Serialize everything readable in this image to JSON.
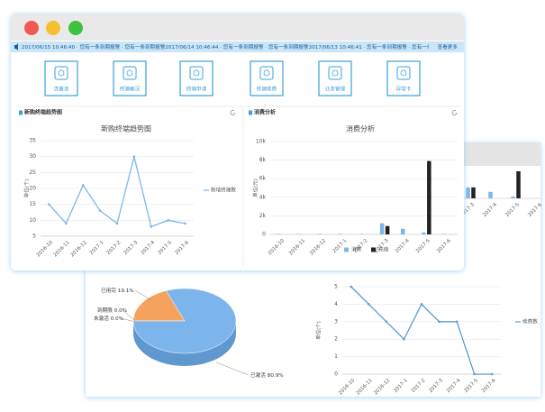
{
  "ticker": {
    "text": "2017/06/15 10:46:40 · 您有一条到期报警 · 您有一条到期报警2017/06/14 10:46:44 · 您有一条到期报警 · 您有一条到期报警2017/06/13 10:46:41 · 您有一条到期报警 · 您有一条",
    "more": "查看更多"
  },
  "shortcuts": [
    "流量池",
    "终端概况",
    "终端申请",
    "终端续费",
    "业务管理",
    "异常卡"
  ],
  "chart_data": [
    {
      "type": "line",
      "panel_title": "新购终端趋势图",
      "title": "新购终端趋势图",
      "y_label": "单位(个)",
      "categories": [
        "2016-10",
        "2016-11",
        "2016-12",
        "2017-1",
        "2017-2",
        "2017-3",
        "2017-4",
        "2017-5",
        "2017-6"
      ],
      "series": [
        {
          "name": "新增终端数",
          "color": "#7cb5ec",
          "values": [
            15,
            9,
            21,
            13,
            9,
            30,
            8,
            10,
            9
          ]
        }
      ],
      "ylim": [
        5,
        35
      ],
      "yticks": [
        5,
        10,
        15,
        20,
        25,
        30,
        35
      ],
      "grid": true
    },
    {
      "type": "bar",
      "panel_title": "消费分析",
      "title": "消费分析",
      "y_label": "单位(元)",
      "categories": [
        "2016-10",
        "2016-11",
        "2016-12",
        "2017-1",
        "2017-2",
        "2017-3",
        "2017-4",
        "2017-5",
        "2017-6"
      ],
      "series": [
        {
          "name": "消费",
          "color": "#7cb5ec",
          "values": [
            50,
            50,
            50,
            50,
            50,
            1200,
            600,
            200,
            50
          ]
        },
        {
          "name": "充值",
          "color": "#222222",
          "values": [
            0,
            0,
            0,
            0,
            0,
            900,
            0,
            7900,
            0
          ]
        }
      ],
      "ylim": [
        0,
        10000
      ],
      "yticks": [
        0,
        {
          "value": 2000,
          "label": "2k"
        },
        {
          "value": 4000,
          "label": "4k"
        },
        {
          "value": 6000,
          "label": "6k"
        },
        {
          "value": 8000,
          "label": "8k"
        },
        {
          "value": 10000,
          "label": "10k"
        }
      ],
      "grid": true
    },
    {
      "type": "pie",
      "categories": [
        "已用完",
        "到期限",
        "未激活",
        "已激活"
      ],
      "values": [
        19.1,
        0,
        0,
        80.9
      ],
      "value_labels": [
        "19.1%",
        "0.0%",
        "0.0%",
        "80.9%"
      ],
      "colors": [
        "#f4a25e",
        "#90ed7d",
        "#434348",
        "#7cb5ec"
      ]
    },
    {
      "type": "line",
      "y_label": "单位(个)",
      "categories": [
        "2016-10",
        "2016-11",
        "2016-12",
        "2017-1",
        "2017-2",
        "2017-3",
        "2017-4",
        "2017-5",
        "2017-6"
      ],
      "series": [
        {
          "name": "续费数",
          "color": "#5b9bd5",
          "values": [
            5,
            4,
            3,
            2,
            4,
            3,
            3,
            0,
            0
          ]
        }
      ],
      "ylim": [
        0,
        5
      ],
      "yticks": [
        0,
        1,
        2,
        3,
        4,
        5
      ],
      "grid": true
    },
    {
      "type": "bar",
      "categories": [
        "2017-3",
        "2017-4",
        "2017-5",
        "2017-6"
      ],
      "series": [
        {
          "color": "#7cb5ec",
          "values": [
            3200,
            1900,
            500,
            0
          ]
        },
        {
          "color": "#222222",
          "values": [
            3200,
            0,
            7900,
            0
          ]
        }
      ],
      "ylim": [
        0,
        8000
      ]
    }
  ]
}
